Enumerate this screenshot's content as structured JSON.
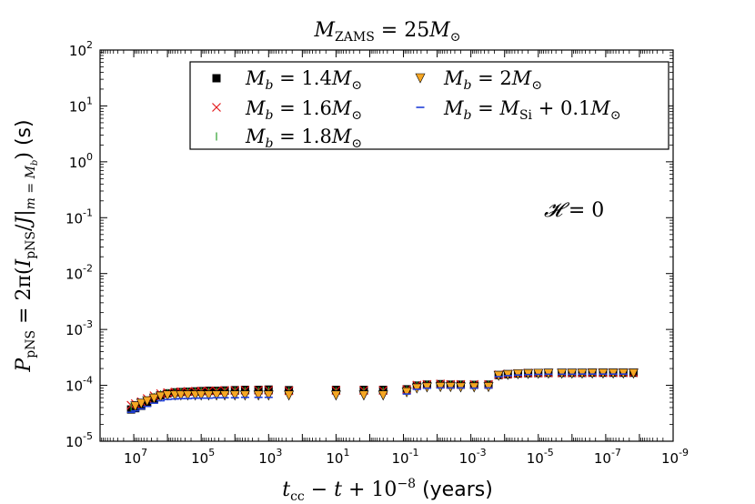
{
  "chart_data": {
    "type": "scatter",
    "title": "M_ZAMS = 25M_⊙",
    "xlabel": "t_cc − t + 10^−8",
    "xlabel_unit": "(years)",
    "ylabel": "P_pNS = 2π(I_pNS / J|_m=M_b)",
    "ylabel_unit": "(s)",
    "xscale": "log",
    "yscale": "log",
    "x_reversed": true,
    "xlim": [
      100000000,
      1e-09
    ],
    "ylim": [
      1e-05,
      100
    ],
    "x_ticks": [
      {
        "base": "10",
        "exp": "7"
      },
      {
        "base": "10",
        "exp": "5"
      },
      {
        "base": "10",
        "exp": "3"
      },
      {
        "base": "10",
        "exp": "1"
      },
      {
        "base": "10",
        "exp": "-1"
      },
      {
        "base": "10",
        "exp": "-3"
      },
      {
        "base": "10",
        "exp": "-5"
      },
      {
        "base": "10",
        "exp": "-7"
      },
      {
        "base": "10",
        "exp": "-9"
      }
    ],
    "y_ticks": [
      {
        "base": "10",
        "exp": "2"
      },
      {
        "base": "10",
        "exp": "1"
      },
      {
        "base": "10",
        "exp": "0"
      },
      {
        "base": "10",
        "exp": "-1"
      },
      {
        "base": "10",
        "exp": "-2"
      },
      {
        "base": "10",
        "exp": "-3"
      },
      {
        "base": "10",
        "exp": "-4"
      },
      {
        "base": "10",
        "exp": "-5"
      }
    ],
    "annotation": "𝓗 = 0",
    "legend_position": "top-right",
    "series": [
      {
        "name": "M_b = 1.4M_⊙",
        "marker": "square",
        "color": "#000000",
        "points": [
          [
            12000000,
            3.7e-05
          ],
          [
            9000000,
            3.9e-05
          ],
          [
            6000000,
            4.3e-05
          ],
          [
            4000000,
            4.9e-05
          ],
          [
            2500000,
            5.7e-05
          ],
          [
            1600000,
            6.6e-05
          ],
          [
            1000000,
            7.2e-05
          ],
          [
            600000,
            7.5e-05
          ],
          [
            400000,
            7.6e-05
          ],
          [
            250000,
            7.7e-05
          ],
          [
            150000,
            7.8e-05
          ],
          [
            100000,
            7.9e-05
          ],
          [
            60000,
            8e-05
          ],
          [
            35000,
            8e-05
          ],
          [
            20000,
            8.1e-05
          ],
          [
            10000,
            8.2e-05
          ],
          [
            5000,
            8.3e-05
          ],
          [
            2000,
            8.3e-05
          ],
          [
            1000,
            8.4e-05
          ],
          [
            250,
            8.2e-05
          ],
          [
            10,
            8.3e-05
          ],
          [
            1.5,
            8.3e-05
          ],
          [
            0.4,
            8.3e-05
          ],
          [
            0.08,
            8.5e-05
          ],
          [
            0.04,
            9.9e-05
          ],
          [
            0.02,
            0.000103
          ],
          [
            0.008,
            0.000105
          ],
          [
            0.004,
            0.000103
          ],
          [
            0.002,
            0.000103
          ],
          [
            0.0008,
            0.000102
          ],
          [
            0.0003,
            0.000103
          ],
          [
            0.00015,
            0.000153
          ],
          [
            8e-05,
            0.000158
          ],
          [
            4e-05,
            0.000162
          ],
          [
            2e-05,
            0.000165
          ],
          [
            1e-05,
            0.000166
          ],
          [
            5e-06,
            0.000167
          ],
          [
            2e-06,
            0.000167
          ],
          [
            1e-06,
            0.000167
          ],
          [
            5e-07,
            0.000167
          ],
          [
            2.5e-07,
            0.000168
          ],
          [
            1.2e-07,
            0.000168
          ],
          [
            6e-08,
            0.000168
          ],
          [
            3e-08,
            0.000168
          ],
          [
            1.5e-08,
            0.000168
          ]
        ]
      },
      {
        "name": "M_b = 1.6M_⊙",
        "marker": "x",
        "color": "#e41a1c",
        "points": [
          [
            12000000,
            4.4e-05
          ],
          [
            9000000,
            4.7e-05
          ],
          [
            6000000,
            5.1e-05
          ],
          [
            4000000,
            5.8e-05
          ],
          [
            2500000,
            6.5e-05
          ],
          [
            1600000,
            7.1e-05
          ],
          [
            1000000,
            7.4e-05
          ],
          [
            600000,
            7.6e-05
          ],
          [
            400000,
            7.7e-05
          ],
          [
            250000,
            7.8e-05
          ],
          [
            150000,
            7.8e-05
          ],
          [
            100000,
            7.9e-05
          ],
          [
            60000,
            8e-05
          ],
          [
            35000,
            8e-05
          ],
          [
            20000,
            8.1e-05
          ],
          [
            10000,
            8.1e-05
          ],
          [
            5000,
            8.2e-05
          ],
          [
            2000,
            8.2e-05
          ],
          [
            1000,
            8.2e-05
          ],
          [
            250,
            8e-05
          ],
          [
            10,
            8.1e-05
          ],
          [
            1.5,
            8.1e-05
          ],
          [
            0.4,
            8.1e-05
          ],
          [
            0.08,
            8.4e-05
          ],
          [
            0.04,
            0.000101
          ],
          [
            0.02,
            0.000104
          ],
          [
            0.008,
            0.000106
          ],
          [
            0.004,
            0.000104
          ],
          [
            0.002,
            0.000104
          ],
          [
            0.0008,
            0.000104
          ],
          [
            0.0003,
            0.000104
          ],
          [
            0.00015,
            0.000155
          ],
          [
            8e-05,
            0.000159
          ],
          [
            4e-05,
            0.000163
          ],
          [
            2e-05,
            0.000166
          ],
          [
            1e-05,
            0.000166
          ],
          [
            5e-06,
            0.000167
          ],
          [
            2e-06,
            0.000167
          ],
          [
            1e-06,
            0.000167
          ],
          [
            5e-07,
            0.000167
          ],
          [
            2.5e-07,
            0.000168
          ],
          [
            1.2e-07,
            0.000168
          ],
          [
            6e-08,
            0.000168
          ],
          [
            3e-08,
            0.000168
          ],
          [
            1.5e-08,
            0.000168
          ]
        ]
      },
      {
        "name": "M_b = 1.8M_⊙",
        "marker": "vline",
        "color": "#2ca02c",
        "points": [
          [
            12000000,
            4.1e-05
          ],
          [
            9000000,
            4.4e-05
          ],
          [
            6000000,
            4.8e-05
          ],
          [
            4000000,
            5.4e-05
          ],
          [
            2500000,
            6.2e-05
          ],
          [
            1600000,
            6.9e-05
          ],
          [
            1000000,
            7.2e-05
          ],
          [
            600000,
            7.4e-05
          ],
          [
            400000,
            7.5e-05
          ],
          [
            250000,
            7.6e-05
          ],
          [
            150000,
            7.6e-05
          ],
          [
            100000,
            7.7e-05
          ],
          [
            60000,
            7.7e-05
          ],
          [
            35000,
            7.8e-05
          ],
          [
            20000,
            7.8e-05
          ],
          [
            10000,
            7.9e-05
          ],
          [
            5000,
            7.9e-05
          ],
          [
            2000,
            7.9e-05
          ],
          [
            1000,
            8e-05
          ],
          [
            250,
            7.8e-05
          ],
          [
            10,
            7.8e-05
          ],
          [
            1.5,
            7.9e-05
          ],
          [
            0.4,
            7.9e-05
          ],
          [
            0.08,
            8.2e-05
          ],
          [
            0.04,
            9.8e-05
          ],
          [
            0.02,
            0.000102
          ],
          [
            0.008,
            0.000103
          ],
          [
            0.004,
            0.000102
          ],
          [
            0.002,
            0.000102
          ],
          [
            0.0008,
            0.000101
          ],
          [
            0.0003,
            0.000102
          ],
          [
            0.00015,
            0.000152
          ],
          [
            8e-05,
            0.000157
          ],
          [
            4e-05,
            0.000161
          ],
          [
            2e-05,
            0.000164
          ],
          [
            1e-05,
            0.000165
          ],
          [
            5e-06,
            0.000166
          ],
          [
            2e-06,
            0.000166
          ],
          [
            1e-06,
            0.000166
          ],
          [
            5e-07,
            0.000167
          ],
          [
            2.5e-07,
            0.000167
          ],
          [
            1.2e-07,
            0.000167
          ],
          [
            6e-08,
            0.000167
          ],
          [
            3e-08,
            0.000167
          ],
          [
            1.5e-08,
            0.000167
          ]
        ]
      },
      {
        "name": "M_b = 2M_⊙",
        "marker": "triangle-down",
        "color": "#f5a623",
        "points": [
          [
            9000000,
            4.2e-05
          ],
          [
            6000000,
            4.7e-05
          ],
          [
            4000000,
            5.2e-05
          ],
          [
            2500000,
            5.8e-05
          ],
          [
            1600000,
            6.3e-05
          ],
          [
            1000000,
            6.6e-05
          ],
          [
            600000,
            6.6e-05
          ],
          [
            400000,
            6.6e-05
          ],
          [
            250000,
            6.6e-05
          ],
          [
            150000,
            6.6e-05
          ],
          [
            100000,
            6.6e-05
          ],
          [
            60000,
            6.6e-05
          ],
          [
            35000,
            6.6e-05
          ],
          [
            20000,
            6.6e-05
          ],
          [
            10000,
            6.6e-05
          ],
          [
            5000,
            6.6e-05
          ],
          [
            2000,
            6.6e-05
          ],
          [
            1000,
            6.6e-05
          ],
          [
            250,
            6.6e-05
          ],
          [
            10,
            6.6e-05
          ],
          [
            1.5,
            6.6e-05
          ],
          [
            0.4,
            6.6e-05
          ],
          [
            0.08,
            7.5e-05
          ],
          [
            0.04,
            8.8e-05
          ],
          [
            0.02,
            9.2e-05
          ],
          [
            0.008,
            9.3e-05
          ],
          [
            0.004,
            9.3e-05
          ],
          [
            0.002,
            9.2e-05
          ],
          [
            0.0008,
            9.2e-05
          ],
          [
            0.0003,
            9.3e-05
          ],
          [
            0.00015,
            0.000148
          ],
          [
            8e-05,
            0.000154
          ],
          [
            4e-05,
            0.000158
          ],
          [
            2e-05,
            0.00016
          ],
          [
            1e-05,
            0.000161
          ],
          [
            5e-06,
            0.000162
          ],
          [
            2e-06,
            0.000162
          ],
          [
            1e-06,
            0.000162
          ],
          [
            5e-07,
            0.000162
          ],
          [
            2.5e-07,
            0.000163
          ],
          [
            1.2e-07,
            0.000163
          ],
          [
            6e-08,
            0.000163
          ],
          [
            3e-08,
            0.000163
          ],
          [
            1.5e-08,
            0.000163
          ]
        ]
      },
      {
        "name": "M_b = M_Si + 0.1M_⊙",
        "marker": "hline",
        "color": "#1f3fd8",
        "points": [
          [
            12000000,
            3.3e-05
          ],
          [
            9000000,
            3.5e-05
          ],
          [
            6000000,
            3.8e-05
          ],
          [
            4000000,
            4.2e-05
          ],
          [
            2500000,
            4.8e-05
          ],
          [
            1600000,
            5.3e-05
          ],
          [
            1000000,
            5.6e-05
          ],
          [
            600000,
            5.7e-05
          ],
          [
            400000,
            5.8e-05
          ],
          [
            250000,
            5.8e-05
          ],
          [
            150000,
            5.9e-05
          ],
          [
            100000,
            5.9e-05
          ],
          [
            60000,
            5.9e-05
          ],
          [
            35000,
            6e-05
          ],
          [
            20000,
            6e-05
          ],
          [
            10000,
            6e-05
          ],
          [
            5000,
            6.1e-05
          ],
          [
            2000,
            6.1e-05
          ],
          [
            1000,
            6.1e-05
          ],
          [
            0.08,
            7e-05
          ],
          [
            0.04,
            8.5e-05
          ],
          [
            0.02,
            8.9e-05
          ],
          [
            0.008,
            9e-05
          ],
          [
            0.004,
            9e-05
          ],
          [
            0.002,
            9e-05
          ],
          [
            0.0008,
            8.9e-05
          ],
          [
            0.0003,
            9e-05
          ],
          [
            0.00015,
            0.000143
          ],
          [
            8e-05,
            0.000149
          ],
          [
            4e-05,
            0.000153
          ],
          [
            2e-05,
            0.000156
          ],
          [
            1e-05,
            0.000157
          ],
          [
            5e-06,
            0.000158
          ],
          [
            2e-06,
            0.000158
          ],
          [
            1e-06,
            0.000158
          ],
          [
            5e-07,
            0.000159
          ],
          [
            2.5e-07,
            0.000159
          ],
          [
            1.2e-07,
            0.000159
          ],
          [
            6e-08,
            0.000159
          ],
          [
            3e-08,
            0.000159
          ]
        ]
      }
    ]
  }
}
